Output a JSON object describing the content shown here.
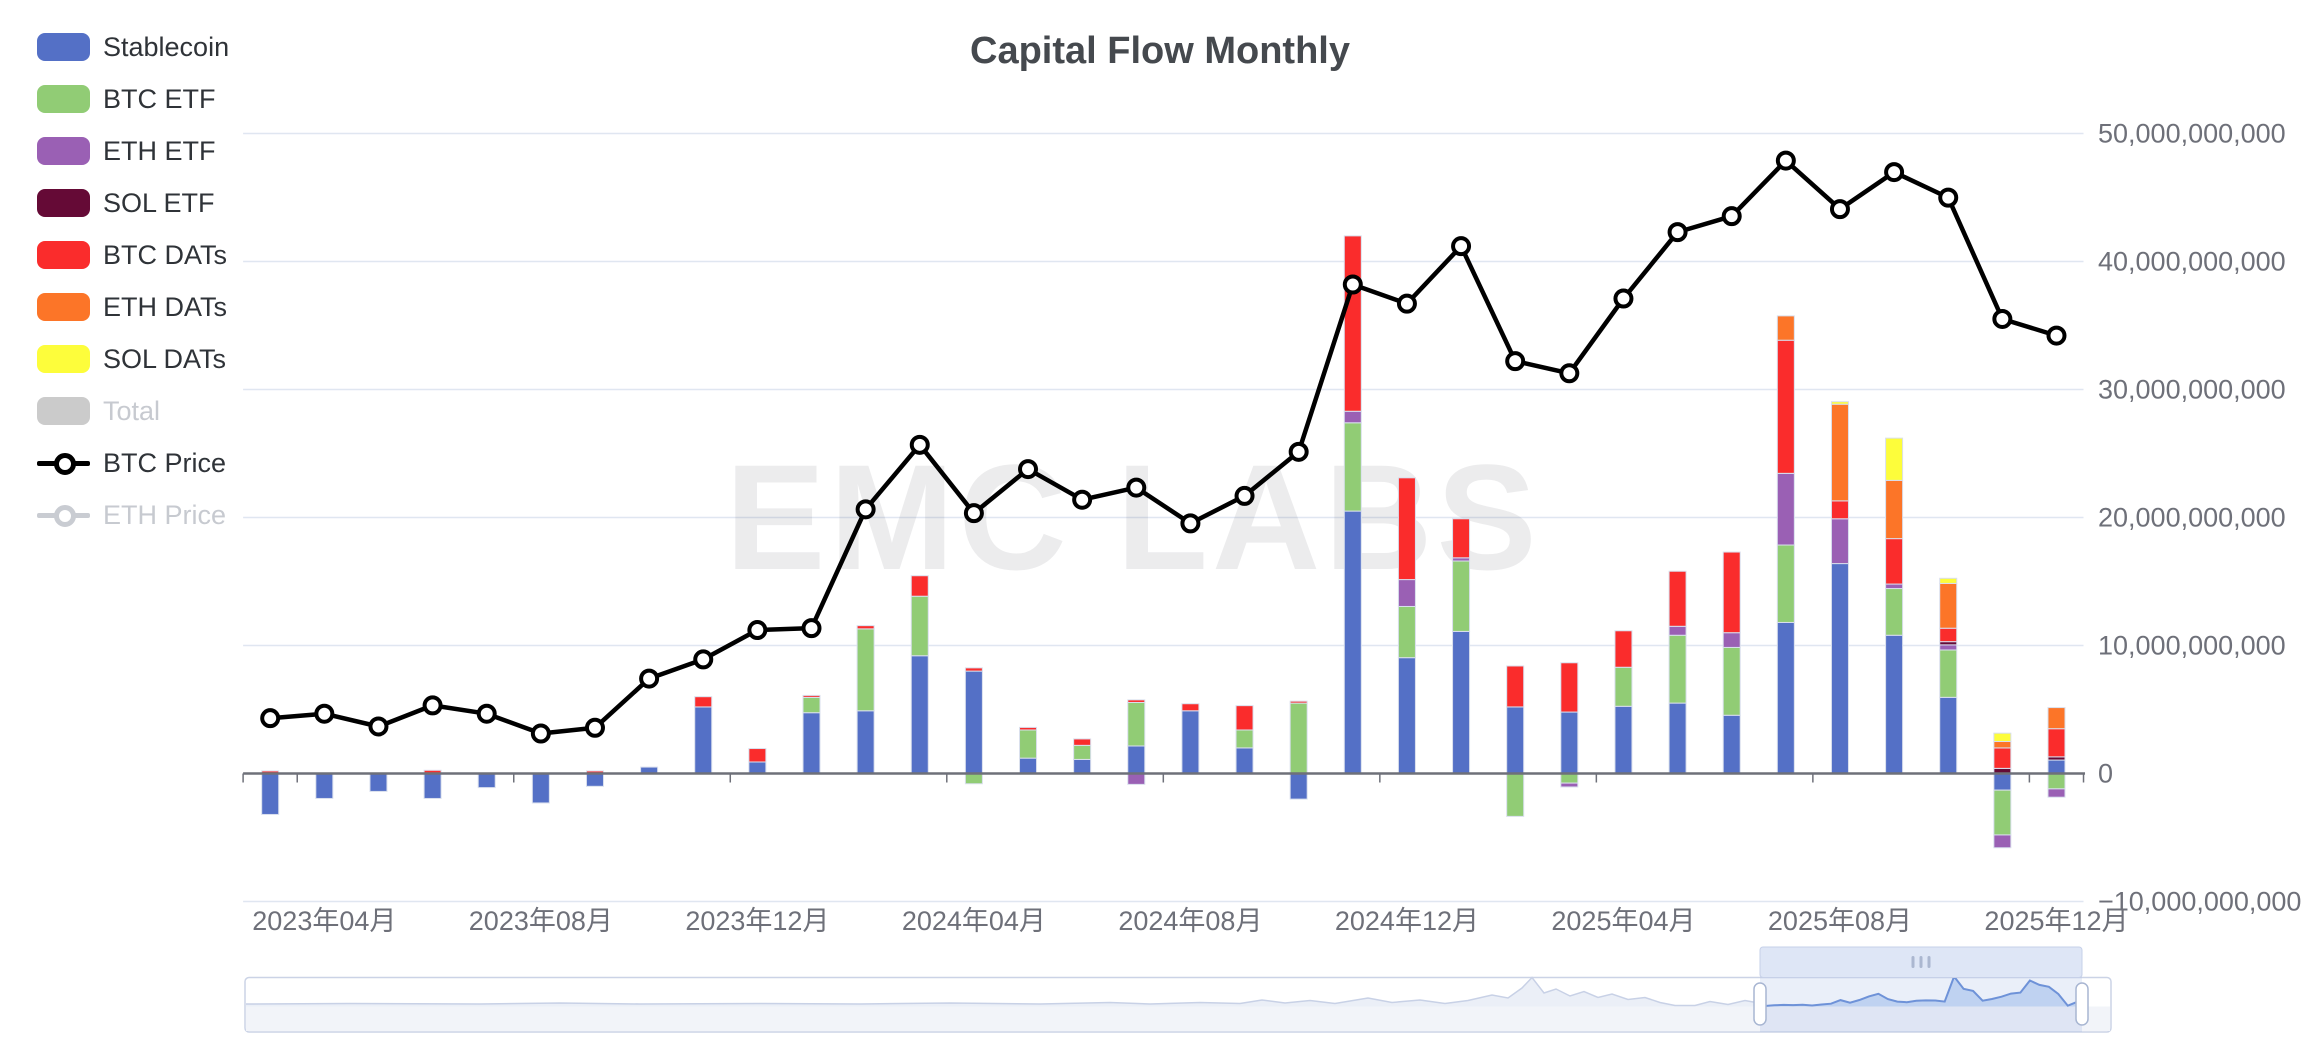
{
  "title": "Capital Flow Monthly",
  "watermark": "EMC LABS",
  "legend": {
    "items": [
      {
        "label": "Stablecoin",
        "color": "#5470C6",
        "type": "bar",
        "enabled": true
      },
      {
        "label": "BTC ETF",
        "color": "#91CC75",
        "type": "bar",
        "enabled": true
      },
      {
        "label": "ETH ETF",
        "color": "#9A60B4",
        "type": "bar",
        "enabled": true
      },
      {
        "label": "SOL ETF",
        "color": "#650A36",
        "type": "bar",
        "enabled": true
      },
      {
        "label": "BTC DATs",
        "color": "#FA2C2C",
        "type": "bar",
        "enabled": true
      },
      {
        "label": "ETH DATs",
        "color": "#FC7528",
        "type": "bar",
        "enabled": true
      },
      {
        "label": "SOL DATs",
        "color": "#FDFD3B",
        "type": "bar",
        "enabled": true
      },
      {
        "label": "Total",
        "color": "#CBCBCB",
        "type": "bar",
        "enabled": false
      },
      {
        "label": "BTC Price",
        "color": "#000000",
        "type": "line",
        "enabled": true
      },
      {
        "label": "ETH Price",
        "color": "#C9CCD2",
        "type": "line",
        "enabled": false
      }
    ]
  },
  "chart_data": {
    "type": "bar",
    "subtype": "stacked-bars-with-price-line",
    "unit": "USD (left values in billions, axis shown in raw units)",
    "months": [
      "2023-03",
      "2023-04",
      "2023-05",
      "2023-06",
      "2023-07",
      "2023-08",
      "2023-09",
      "2023-10",
      "2023-11",
      "2023-12",
      "2024-01",
      "2024-02",
      "2024-03",
      "2024-04",
      "2024-05",
      "2024-06",
      "2024-07",
      "2024-08",
      "2024-09",
      "2024-10",
      "2024-11",
      "2024-12",
      "2025-01",
      "2025-02",
      "2025-03",
      "2025-04",
      "2025-05",
      "2025-06",
      "2025-07",
      "2025-08",
      "2025-09",
      "2025-10",
      "2025-11",
      "2025-12"
    ],
    "series": [
      {
        "name": "Stablecoin",
        "color": "#5470C6",
        "values_billion": [
          -3.2,
          -1.95,
          -1.4,
          -1.95,
          -1.1,
          -2.3,
          -1.0,
          0.5,
          5.2,
          0.9,
          4.75,
          4.9,
          9.2,
          8.0,
          1.2,
          1.1,
          2.15,
          4.9,
          2.0,
          -2.0,
          20.5,
          9.05,
          11.1,
          5.2,
          4.8,
          5.25,
          5.5,
          4.55,
          11.8,
          16.4,
          10.8,
          5.95,
          -1.3,
          1.05
        ]
      },
      {
        "name": "BTC ETF",
        "color": "#91CC75",
        "values_billion": [
          0,
          0,
          0,
          0,
          0,
          0,
          0,
          0,
          0,
          0,
          1.2,
          6.4,
          4.65,
          -0.8,
          2.2,
          1.1,
          3.4,
          0,
          1.4,
          5.5,
          6.9,
          4.0,
          5.5,
          -3.35,
          -0.75,
          3.05,
          5.3,
          5.3,
          6.05,
          0,
          3.65,
          3.7,
          -3.5,
          -1.2
        ]
      },
      {
        "name": "ETH ETF",
        "color": "#9A60B4",
        "values_billion": [
          0,
          0,
          0,
          0,
          0,
          0,
          0,
          0,
          0,
          0,
          0,
          0,
          0,
          0,
          0,
          0,
          -0.85,
          0,
          0,
          0,
          0.9,
          2.1,
          0.25,
          0,
          -0.3,
          0,
          0.7,
          1.15,
          5.6,
          3.5,
          0.35,
          0.4,
          -1.0,
          -0.65
        ]
      },
      {
        "name": "SOL ETF",
        "color": "#650A36",
        "values_billion": [
          0,
          0,
          0,
          0,
          0,
          0,
          0,
          0,
          0,
          0,
          0,
          0,
          0,
          0,
          0,
          0,
          0,
          0,
          0,
          0,
          0,
          0,
          0,
          0,
          0,
          0,
          0,
          0,
          0,
          0,
          0,
          0.25,
          0.4,
          0.25
        ]
      },
      {
        "name": "BTC DATs",
        "color": "#FA2C2C",
        "values_billion": [
          0.2,
          0,
          0,
          0.25,
          0,
          0,
          0.2,
          0,
          0.8,
          1.05,
          0.15,
          0.25,
          1.6,
          0.25,
          0.2,
          0.5,
          0.2,
          0.55,
          1.9,
          0.15,
          13.7,
          7.95,
          3.05,
          3.2,
          3.85,
          2.85,
          4.3,
          6.3,
          10.4,
          1.4,
          3.55,
          1.05,
          1.6,
          2.2
        ]
      },
      {
        "name": "ETH DATs",
        "color": "#FC7528",
        "values_billion": [
          0,
          0,
          0,
          0,
          0,
          0,
          0,
          0,
          0,
          0,
          0,
          0,
          0,
          0,
          0,
          0,
          0,
          0,
          0,
          0,
          0,
          0,
          0,
          0,
          0,
          0,
          0,
          0,
          1.9,
          7.55,
          4.55,
          3.5,
          0.5,
          1.65
        ]
      },
      {
        "name": "SOL DATs",
        "color": "#FDFD3B",
        "values_billion": [
          0,
          0,
          0,
          0,
          0,
          0,
          0,
          0,
          0,
          0,
          0,
          0,
          0,
          0,
          0,
          0,
          0,
          0,
          0,
          0,
          0,
          0,
          0,
          0,
          0,
          0,
          0,
          0,
          0,
          0.2,
          3.3,
          0.4,
          0.65,
          0
        ]
      }
    ],
    "line_series": {
      "name": "BTC Price",
      "color": "#000000",
      "axis": "hidden (no numeric labels shown)",
      "values_usd_thousand": [
        28.5,
        29.2,
        27.2,
        30.5,
        29.2,
        26.1,
        27.0,
        34.7,
        37.7,
        42.3,
        42.6,
        61.2,
        71.3,
        60.6,
        67.5,
        62.7,
        64.6,
        59.0,
        63.3,
        70.2,
        96.4,
        93.4,
        102.4,
        84.4,
        82.5,
        94.2,
        104.6,
        107.1,
        115.8,
        108.2,
        114.0,
        110.0,
        91.0,
        88.4
      ]
    },
    "y_axis": {
      "side": "right",
      "tick_labels": [
        "50,000,000,000",
        "40,000,000,000",
        "30,000,000,000",
        "20,000,000,000",
        "10,000,000,000",
        "0",
        "−10,000,000,000"
      ],
      "ylim_billion": [
        -10,
        50
      ],
      "grid": true
    },
    "x_axis": {
      "visible_tick_labels": [
        {
          "text": "2023年04月",
          "month_index": 1
        },
        {
          "text": "2023年08月",
          "month_index": 5
        },
        {
          "text": "2023年12月",
          "month_index": 9
        },
        {
          "text": "2024年04月",
          "month_index": 13
        },
        {
          "text": "2024年08月",
          "month_index": 17
        },
        {
          "text": "2024年12月",
          "month_index": 21
        },
        {
          "text": "2025年04月",
          "month_index": 25
        },
        {
          "text": "2025年08月",
          "month_index": 29
        },
        {
          "text": "2025年12月",
          "month_index": 33
        }
      ]
    },
    "legend_position": "top-left-vertical"
  },
  "navigator": {
    "description": "data zoom slider with selected window over the displayed months",
    "history_shadow_points": [
      [
        246,
        1004
      ],
      [
        350,
        1003.5
      ],
      [
        480,
        1004
      ],
      [
        560,
        1003
      ],
      [
        640,
        1004
      ],
      [
        760,
        1003.5
      ],
      [
        860,
        1004
      ],
      [
        950,
        1003
      ],
      [
        1040,
        1004
      ],
      [
        1110,
        1002.5
      ],
      [
        1150,
        1004
      ],
      [
        1200,
        1002.5
      ],
      [
        1240,
        1003.5
      ],
      [
        1262,
        1000
      ],
      [
        1285,
        1003
      ],
      [
        1310,
        1000.5
      ],
      [
        1335,
        1003.5
      ],
      [
        1368,
        998
      ],
      [
        1392,
        1002.5
      ],
      [
        1420,
        1000
      ],
      [
        1445,
        1003.5
      ],
      [
        1468,
        1000.5
      ],
      [
        1492,
        995
      ],
      [
        1508,
        998
      ],
      [
        1522,
        988
      ],
      [
        1532,
        977.5
      ],
      [
        1544,
        993
      ],
      [
        1556,
        989
      ],
      [
        1570,
        996
      ],
      [
        1584,
        991.5
      ],
      [
        1598,
        997.5
      ],
      [
        1612,
        994
      ],
      [
        1628,
        999.5
      ],
      [
        1645,
        997.5
      ],
      [
        1660,
        1002.5
      ],
      [
        1675,
        1005.5
      ],
      [
        1695,
        1005.5
      ],
      [
        1710,
        1001.5
      ],
      [
        1728,
        1004.5
      ],
      [
        1745,
        1000.5
      ],
      [
        1756,
        1002.5
      ]
    ],
    "move_handle_grip": "|||"
  },
  "colors": {
    "grid_line": "#E0E6F1",
    "axis_line": "#6E7079",
    "axis_text": "#6E7079",
    "title_text": "#45494E",
    "bar_border": "#D9DFED",
    "nav_border": "#CBD3E6",
    "nav_strip": "#F2F4F9",
    "nav_shadow_line": "#C8D1E6",
    "nav_shadow_fill": "#EBEFF7",
    "nav_sel_line": "#6E92D8",
    "nav_sel_fill": "#BFD2F1",
    "nav_sel_overlay": "rgba(126,156,217,0.16)",
    "nav_move_handle": "#DEE6F6",
    "nav_move_handle_border": "#C6D0E8",
    "nav_grip": "#ABB7D0",
    "watermark_color": "rgba(70,70,80,0.10)"
  }
}
